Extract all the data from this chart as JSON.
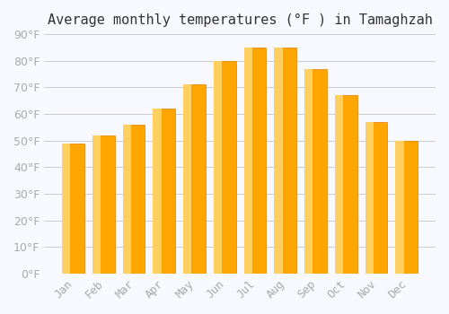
{
  "title": "Average monthly temperatures (°F ) in Tamaghzah",
  "months": [
    "Jan",
    "Feb",
    "Mar",
    "Apr",
    "May",
    "Jun",
    "Jul",
    "Aug",
    "Sep",
    "Oct",
    "Nov",
    "Dec"
  ],
  "values": [
    49,
    52,
    56,
    62,
    71,
    80,
    85,
    85,
    77,
    67,
    57,
    50
  ],
  "bar_color": "#FFA500",
  "bar_edge_color": "#E08000",
  "bar_gradient_top": "#FFD060",
  "background_color": "#F8F8FF",
  "grid_color": "#CCCCCC",
  "ylim": [
    0,
    90
  ],
  "yticks": [
    0,
    10,
    20,
    30,
    40,
    50,
    60,
    70,
    80,
    90
  ],
  "ylabel_suffix": "°F",
  "title_fontsize": 11,
  "tick_fontsize": 9,
  "tick_color": "#AAAAAA"
}
